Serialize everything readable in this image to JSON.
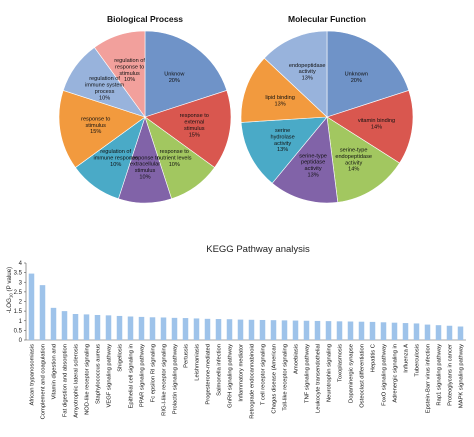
{
  "chart_data": [
    {
      "type": "pie",
      "title": "Biological Process",
      "slices": [
        {
          "label": "Unknow",
          "value": 20,
          "pct": "20%",
          "color": "#6f93c8"
        },
        {
          "label": "response to external stimulus",
          "value": 15,
          "pct": "15%",
          "color": "#d9574f"
        },
        {
          "label": "response to nutrient levels",
          "value": 10,
          "pct": "10%",
          "color": "#a2c760"
        },
        {
          "label": "response to extracellular stimulus",
          "value": 10,
          "pct": "10%",
          "color": "#8163a8"
        },
        {
          "label": "regulation of immune response",
          "value": 10,
          "pct": "10%",
          "color": "#4aaac7"
        },
        {
          "label": "response to stimulus",
          "value": 15,
          "pct": "15%",
          "color": "#f29a3e"
        },
        {
          "label": "regulation of immune system process",
          "value": 10,
          "pct": "10%",
          "color": "#98b3dc"
        },
        {
          "label": "regulation of response to stimulus",
          "value": 10,
          "pct": "10%",
          "color": "#f2a09c"
        }
      ]
    },
    {
      "type": "pie",
      "title": "Molecular Function",
      "slices": [
        {
          "label": "Unknown",
          "value": 20,
          "pct": "20%",
          "color": "#6f93c8"
        },
        {
          "label": "vitamin binding",
          "value": 14,
          "pct": "14%",
          "color": "#d9574f"
        },
        {
          "label": "serine-type endopeptidase activity",
          "value": 14,
          "pct": "14%",
          "color": "#a2c760"
        },
        {
          "label": "serine-type peptidase activity",
          "value": 13,
          "pct": "13%",
          "color": "#8163a8"
        },
        {
          "label": "serine hydrolase activity",
          "value": 13,
          "pct": "13%",
          "color": "#4aaac7"
        },
        {
          "label": "lipid binding",
          "value": 13,
          "pct": "13%",
          "color": "#f29a3e"
        },
        {
          "label": "endopeptidase activity",
          "value": 13,
          "pct": "13%",
          "color": "#98b3dc"
        }
      ]
    },
    {
      "type": "bar",
      "title": "KEGG Pathway analysis",
      "ylabel": "-LOG",
      "ylabel_sub": "10",
      "ylabel_suffix": " (P value)",
      "ylim": [
        0,
        4
      ],
      "yticks": [
        "0",
        "0.5",
        "1",
        "1.5",
        "2",
        "2.5",
        "3",
        "3.5",
        "4"
      ],
      "bar_color": "#9ec3ea",
      "categories": [
        "African trypanosomiasis",
        "Complement and coagulation",
        "Vitamin digestion and",
        "Fat digestion and absorption",
        "Amyotrophic lateral sclerosis",
        "NOD-like receptor signaling",
        "Staphylococcus aureus",
        "VEGF signaling pathway",
        "Shigellosis",
        "Epithelial cell signaling in",
        "PPAR signaling pathway",
        "Fc epsilon RI signaling",
        "RIG-I-like receptor signaling",
        "Prolactin signaling pathway",
        "Pertussis",
        "Leishmaniasis",
        "Progesterone-mediated",
        "Salmonella infection",
        "GnRH signaling pathway",
        "Inflammatory mediator",
        "Retrograde endocannabinoid",
        "T cell receptor signaling",
        "Chagas disease (American",
        "Toll-like receptor signaling",
        "Amoebiasis",
        "TNF signaling pathway",
        "Leukocyte transendothelial",
        "Neurotrophin signaling",
        "Toxoplasmosis",
        "Dopaminergic synapse",
        "Osteoclast differentiation",
        "Hepatitis C",
        "FoxO signaling pathway",
        "Adrenergic signaling in",
        "Influenza A",
        "Tuberculosis",
        "Epstein-Barr virus infection",
        "Rap1 signaling pathway",
        "Proteoglycans in cancer",
        "MAPK signaling pathway"
      ],
      "values": [
        3.45,
        2.85,
        1.67,
        1.5,
        1.35,
        1.33,
        1.3,
        1.28,
        1.25,
        1.22,
        1.2,
        1.18,
        1.17,
        1.15,
        1.14,
        1.12,
        1.1,
        1.09,
        1.08,
        1.06,
        1.05,
        1.04,
        1.03,
        1.02,
        1.01,
        1.0,
        0.99,
        0.98,
        0.97,
        0.96,
        0.95,
        0.94,
        0.92,
        0.9,
        0.88,
        0.86,
        0.8,
        0.77,
        0.74,
        0.7
      ]
    }
  ]
}
